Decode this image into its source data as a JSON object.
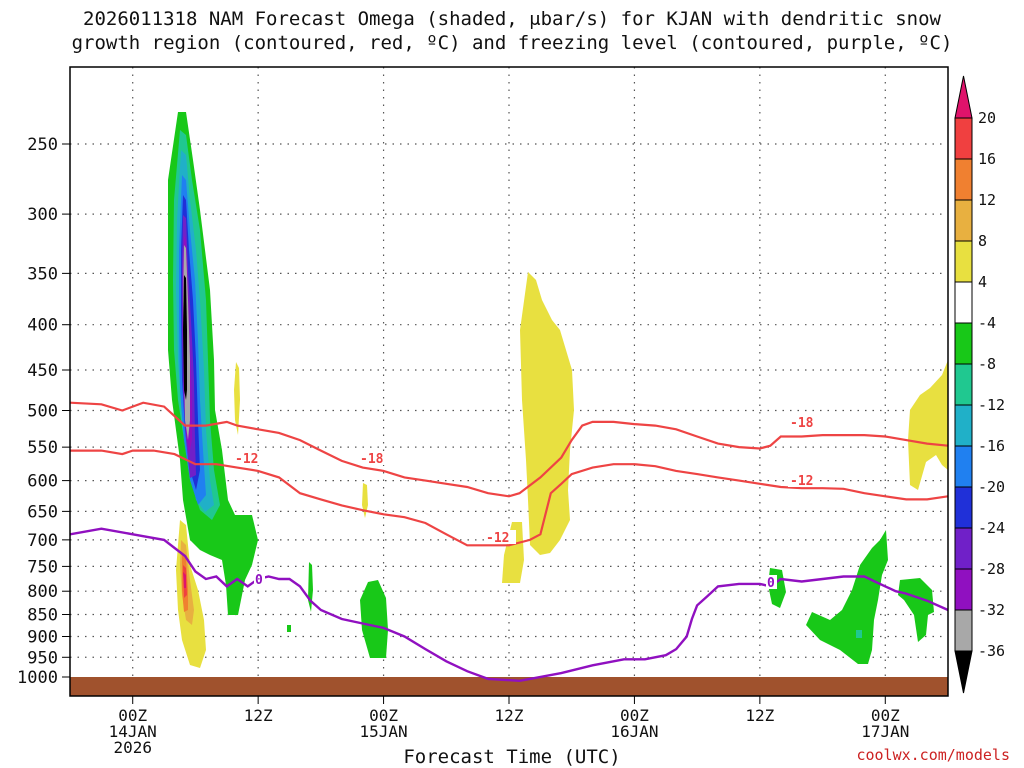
{
  "chart_data": {
    "type": "heatmap",
    "title_line1": "2026011318 NAM Forecast Omega (shaded, μbar/s) for KJAN with dendritic snow",
    "title_line2": "growth region (contoured, red, ºC) and freezing level (contoured, purple, ºC)",
    "xlabel": "Forecast Time (UTC)",
    "ylabel": "",
    "x_ticks": [
      {
        "line1": "00Z",
        "line2": "14JAN",
        "line3": "2026",
        "hour": 6
      },
      {
        "line1": "12Z",
        "line2": "",
        "line3": "",
        "hour": 18
      },
      {
        "line1": "00Z",
        "line2": "15JAN",
        "line3": "",
        "hour": 30
      },
      {
        "line1": "12Z",
        "line2": "",
        "line3": "",
        "hour": 42
      },
      {
        "line1": "00Z",
        "line2": "16JAN",
        "line3": "",
        "hour": 54
      },
      {
        "line1": "12Z",
        "line2": "",
        "line3": "",
        "hour": 66
      },
      {
        "line1": "00Z",
        "line2": "17JAN",
        "line3": "",
        "hour": 78
      }
    ],
    "x_range_hours": [
      0,
      84
    ],
    "y_ticks": [
      250,
      300,
      350,
      400,
      450,
      500,
      550,
      600,
      650,
      700,
      750,
      800,
      850,
      900,
      950,
      1000
    ],
    "y_range_hpa": [
      200,
      1020
    ],
    "colorbar": {
      "ticks": [
        20,
        16,
        12,
        8,
        4,
        -4,
        -8,
        -12,
        -16,
        -20,
        -24,
        -28,
        -32,
        -36
      ],
      "bins": [
        {
          "color": "#e0136b",
          "label": ">20"
        },
        {
          "color": "#f04040",
          "label": "16-20"
        },
        {
          "color": "#f08030",
          "label": "12-16"
        },
        {
          "color": "#e8b040",
          "label": "8-12"
        },
        {
          "color": "#e8e040",
          "label": "4-8"
        },
        {
          "color": "#ffffff",
          "label": "-4-4"
        },
        {
          "color": "#18c818",
          "label": "-8--4"
        },
        {
          "color": "#20c890",
          "label": "-12--8"
        },
        {
          "color": "#20b0c8",
          "label": "-16--12"
        },
        {
          "color": "#2080f0",
          "label": "-20--16"
        },
        {
          "color": "#2030d8",
          "label": "-24--20"
        },
        {
          "color": "#7020c8",
          "label": "-28--24"
        },
        {
          "color": "#9010c0",
          "label": "-32--28"
        },
        {
          "color": "#a8a8a8",
          "label": "-36--32"
        },
        {
          "color": "#000000",
          "label": "<-36"
        }
      ]
    },
    "contour_labels": {
      "dgz_minus18": "-18",
      "dgz_minus12": "-12",
      "freezing": "0"
    },
    "colors": {
      "dgz": "#ee4444",
      "freezing": "#9010c0",
      "ground": "#a0522d",
      "credit": "#cc2222"
    },
    "freezing_level": [
      [
        0,
        690
      ],
      [
        3,
        680
      ],
      [
        6,
        690
      ],
      [
        9,
        700
      ],
      [
        11,
        730
      ],
      [
        12,
        760
      ],
      [
        13,
        775
      ],
      [
        14,
        770
      ],
      [
        15,
        790
      ],
      [
        16,
        775
      ],
      [
        17,
        790
      ],
      [
        18,
        775
      ],
      [
        19,
        770
      ],
      [
        20,
        775
      ],
      [
        21,
        775
      ],
      [
        22,
        790
      ],
      [
        23,
        820
      ],
      [
        24,
        840
      ],
      [
        26,
        860
      ],
      [
        28,
        870
      ],
      [
        30,
        880
      ],
      [
        32,
        900
      ],
      [
        34,
        930
      ],
      [
        36,
        960
      ],
      [
        38,
        985
      ],
      [
        40,
        1005
      ],
      [
        43,
        1010
      ],
      [
        44,
        1005
      ],
      [
        47,
        990
      ],
      [
        50,
        970
      ],
      [
        53,
        955
      ],
      [
        55,
        955
      ],
      [
        57,
        945
      ],
      [
        58,
        930
      ],
      [
        59,
        900
      ],
      [
        59.5,
        860
      ],
      [
        60,
        830
      ],
      [
        61,
        810
      ],
      [
        62,
        790
      ],
      [
        64,
        785
      ],
      [
        66,
        785
      ],
      [
        67,
        790
      ],
      [
        68,
        775
      ],
      [
        70,
        780
      ],
      [
        72,
        775
      ],
      [
        74,
        770
      ],
      [
        76,
        770
      ],
      [
        77,
        780
      ],
      [
        78,
        790
      ],
      [
        79,
        800
      ],
      [
        80,
        805
      ],
      [
        82,
        820
      ],
      [
        84,
        840
      ]
    ],
    "dgz_minus18": [
      [
        0,
        490
      ],
      [
        3,
        492
      ],
      [
        5,
        500
      ],
      [
        6,
        495
      ],
      [
        7,
        490
      ],
      [
        9,
        495
      ],
      [
        11,
        520
      ],
      [
        13,
        520
      ],
      [
        15,
        515
      ],
      [
        16,
        520
      ],
      [
        18,
        525
      ],
      [
        20,
        530
      ],
      [
        22,
        540
      ],
      [
        24,
        555
      ],
      [
        26,
        570
      ],
      [
        28,
        580
      ],
      [
        30,
        585
      ],
      [
        32,
        595
      ],
      [
        34,
        600
      ],
      [
        36,
        605
      ],
      [
        38,
        610
      ],
      [
        40,
        620
      ],
      [
        42,
        625
      ],
      [
        43,
        620
      ],
      [
        45,
        595
      ],
      [
        47,
        565
      ],
      [
        48,
        540
      ],
      [
        49,
        520
      ],
      [
        50,
        515
      ],
      [
        52,
        515
      ],
      [
        54,
        518
      ],
      [
        56,
        520
      ],
      [
        58,
        525
      ],
      [
        60,
        535
      ],
      [
        62,
        545
      ],
      [
        64,
        550
      ],
      [
        66,
        552
      ],
      [
        67,
        548
      ],
      [
        68,
        535
      ],
      [
        70,
        535
      ],
      [
        72,
        533
      ],
      [
        74,
        533
      ],
      [
        76,
        533
      ],
      [
        78,
        535
      ],
      [
        80,
        540
      ],
      [
        82,
        545
      ],
      [
        84,
        548
      ]
    ],
    "dgz_minus12": [
      [
        0,
        555
      ],
      [
        3,
        555
      ],
      [
        5,
        560
      ],
      [
        6,
        555
      ],
      [
        8,
        555
      ],
      [
        10,
        560
      ],
      [
        12,
        575
      ],
      [
        14,
        575
      ],
      [
        16,
        580
      ],
      [
        18,
        585
      ],
      [
        20,
        595
      ],
      [
        22,
        620
      ],
      [
        24,
        630
      ],
      [
        26,
        640
      ],
      [
        28,
        648
      ],
      [
        30,
        655
      ],
      [
        32,
        660
      ],
      [
        34,
        670
      ],
      [
        36,
        690
      ],
      [
        38,
        710
      ],
      [
        40,
        710
      ],
      [
        42,
        710
      ],
      [
        44,
        700
      ],
      [
        45,
        690
      ],
      [
        46,
        620
      ],
      [
        47,
        605
      ],
      [
        48,
        590
      ],
      [
        50,
        580
      ],
      [
        52,
        575
      ],
      [
        54,
        575
      ],
      [
        56,
        578
      ],
      [
        58,
        585
      ],
      [
        60,
        590
      ],
      [
        62,
        595
      ],
      [
        64,
        600
      ],
      [
        66,
        605
      ],
      [
        68,
        610
      ],
      [
        70,
        612
      ],
      [
        72,
        612
      ],
      [
        74,
        613
      ],
      [
        76,
        620
      ],
      [
        78,
        625
      ],
      [
        80,
        630
      ],
      [
        82,
        630
      ],
      [
        84,
        625
      ]
    ]
  },
  "credit": "coolwx.com/models"
}
